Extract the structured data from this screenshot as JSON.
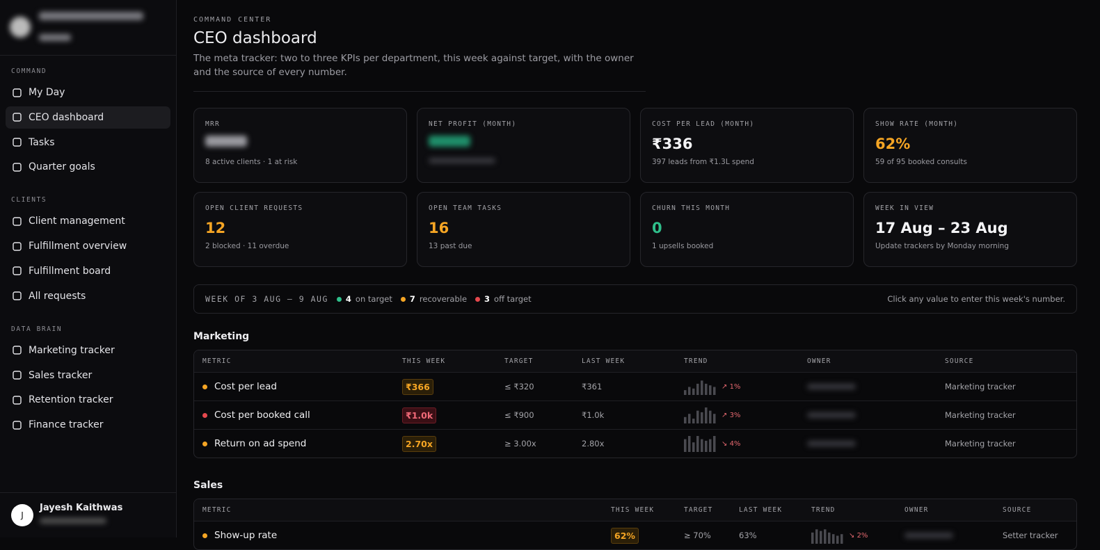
{
  "sidebar": {
    "sections": [
      {
        "title": "COMMAND",
        "items": [
          "My Day",
          "CEO dashboard",
          "Tasks",
          "Quarter goals"
        ]
      },
      {
        "title": "CLIENTS",
        "items": [
          "Client management",
          "Fulfillment overview",
          "Fulfillment board",
          "All requests"
        ]
      },
      {
        "title": "DATA BRAIN",
        "items": [
          "Marketing tracker",
          "Sales tracker",
          "Retention tracker",
          "Finance tracker"
        ]
      }
    ],
    "active_item": "CEO dashboard",
    "user": {
      "initial": "J",
      "name": "Jayesh Kaithwas"
    }
  },
  "header": {
    "eyebrow": "COMMAND CENTER",
    "title": "CEO dashboard",
    "description": "The meta tracker: two to three KPIs per department, this week against target, with the owner and the source of every number."
  },
  "kpis": [
    {
      "label": "MRR",
      "tone": "white",
      "sub": "8 active clients · 1 at risk"
    },
    {
      "label": "NET PROFIT (MONTH)",
      "tone": "green"
    },
    {
      "label": "COST PER LEAD (MONTH)",
      "value": "₹336",
      "tone": "white",
      "sub": "397 leads from ₹1.3L spend"
    },
    {
      "label": "SHOW RATE (MONTH)",
      "value": "62%",
      "tone": "amber",
      "sub": "59 of 95 booked consults"
    },
    {
      "label": "OPEN CLIENT REQUESTS",
      "value": "12",
      "tone": "amber",
      "sub": "2 blocked · 11 overdue"
    },
    {
      "label": "OPEN TEAM TASKS",
      "value": "16",
      "tone": "amber",
      "sub": "13 past due"
    },
    {
      "label": "CHURN THIS MONTH",
      "value": "0",
      "tone": "green",
      "sub": "1 upsells booked"
    },
    {
      "label": "WEEK IN VIEW",
      "value": "17 Aug – 23 Aug",
      "tone": "white",
      "sub": "Update trackers by Monday morning"
    }
  ],
  "status": {
    "week": "WEEK OF 3 AUG – 9 AUG",
    "counts": [
      {
        "count": "4",
        "label": "on target",
        "tone": "green"
      },
      {
        "count": "7",
        "label": "recoverable",
        "tone": "amber"
      },
      {
        "count": "3",
        "label": "off target",
        "tone": "red"
      }
    ],
    "hint": "Click any value to enter this week's number."
  },
  "tables": [
    {
      "title": "Marketing",
      "columns": [
        "METRIC",
        "THIS WEEK",
        "TARGET",
        "LAST WEEK",
        "TREND",
        "OWNER",
        "SOURCE"
      ],
      "rows": [
        {
          "status": "amber",
          "metric": "Cost per lead",
          "this_week": "₹366",
          "target": "≤ ₹320",
          "last_week": "₹361",
          "trend": [
            3,
            5,
            4,
            7,
            9,
            7,
            6,
            5
          ],
          "change": "1%",
          "direction": "up",
          "source": "Marketing tracker"
        },
        {
          "status": "red",
          "metric": "Cost per booked call",
          "this_week": "₹1.0k",
          "target": "≤ ₹900",
          "last_week": "₹1.0k",
          "trend": [
            4,
            6,
            3,
            8,
            7,
            10,
            8,
            6
          ],
          "change": "3%",
          "direction": "up",
          "source": "Marketing tracker"
        },
        {
          "status": "amber",
          "metric": "Return on ad spend",
          "this_week": "2.70x",
          "target": "≥ 3.00x",
          "last_week": "2.80x",
          "trend": [
            8,
            10,
            6,
            10,
            8,
            7,
            8,
            10
          ],
          "change": "4%",
          "direction": "down",
          "source": "Marketing tracker"
        }
      ]
    },
    {
      "title": "Sales",
      "columns": [
        "METRIC",
        "THIS WEEK",
        "TARGET",
        "LAST WEEK",
        "TREND",
        "OWNER",
        "SOURCE"
      ],
      "rows": [
        {
          "status": "amber",
          "metric": "Show-up rate",
          "this_week": "62%",
          "target": "≥ 70%",
          "last_week": "63%",
          "trend": [
            7,
            9,
            8,
            9,
            7,
            6,
            5,
            6
          ],
          "change": "2%",
          "direction": "down",
          "source": "Setter tracker"
        }
      ]
    }
  ]
}
